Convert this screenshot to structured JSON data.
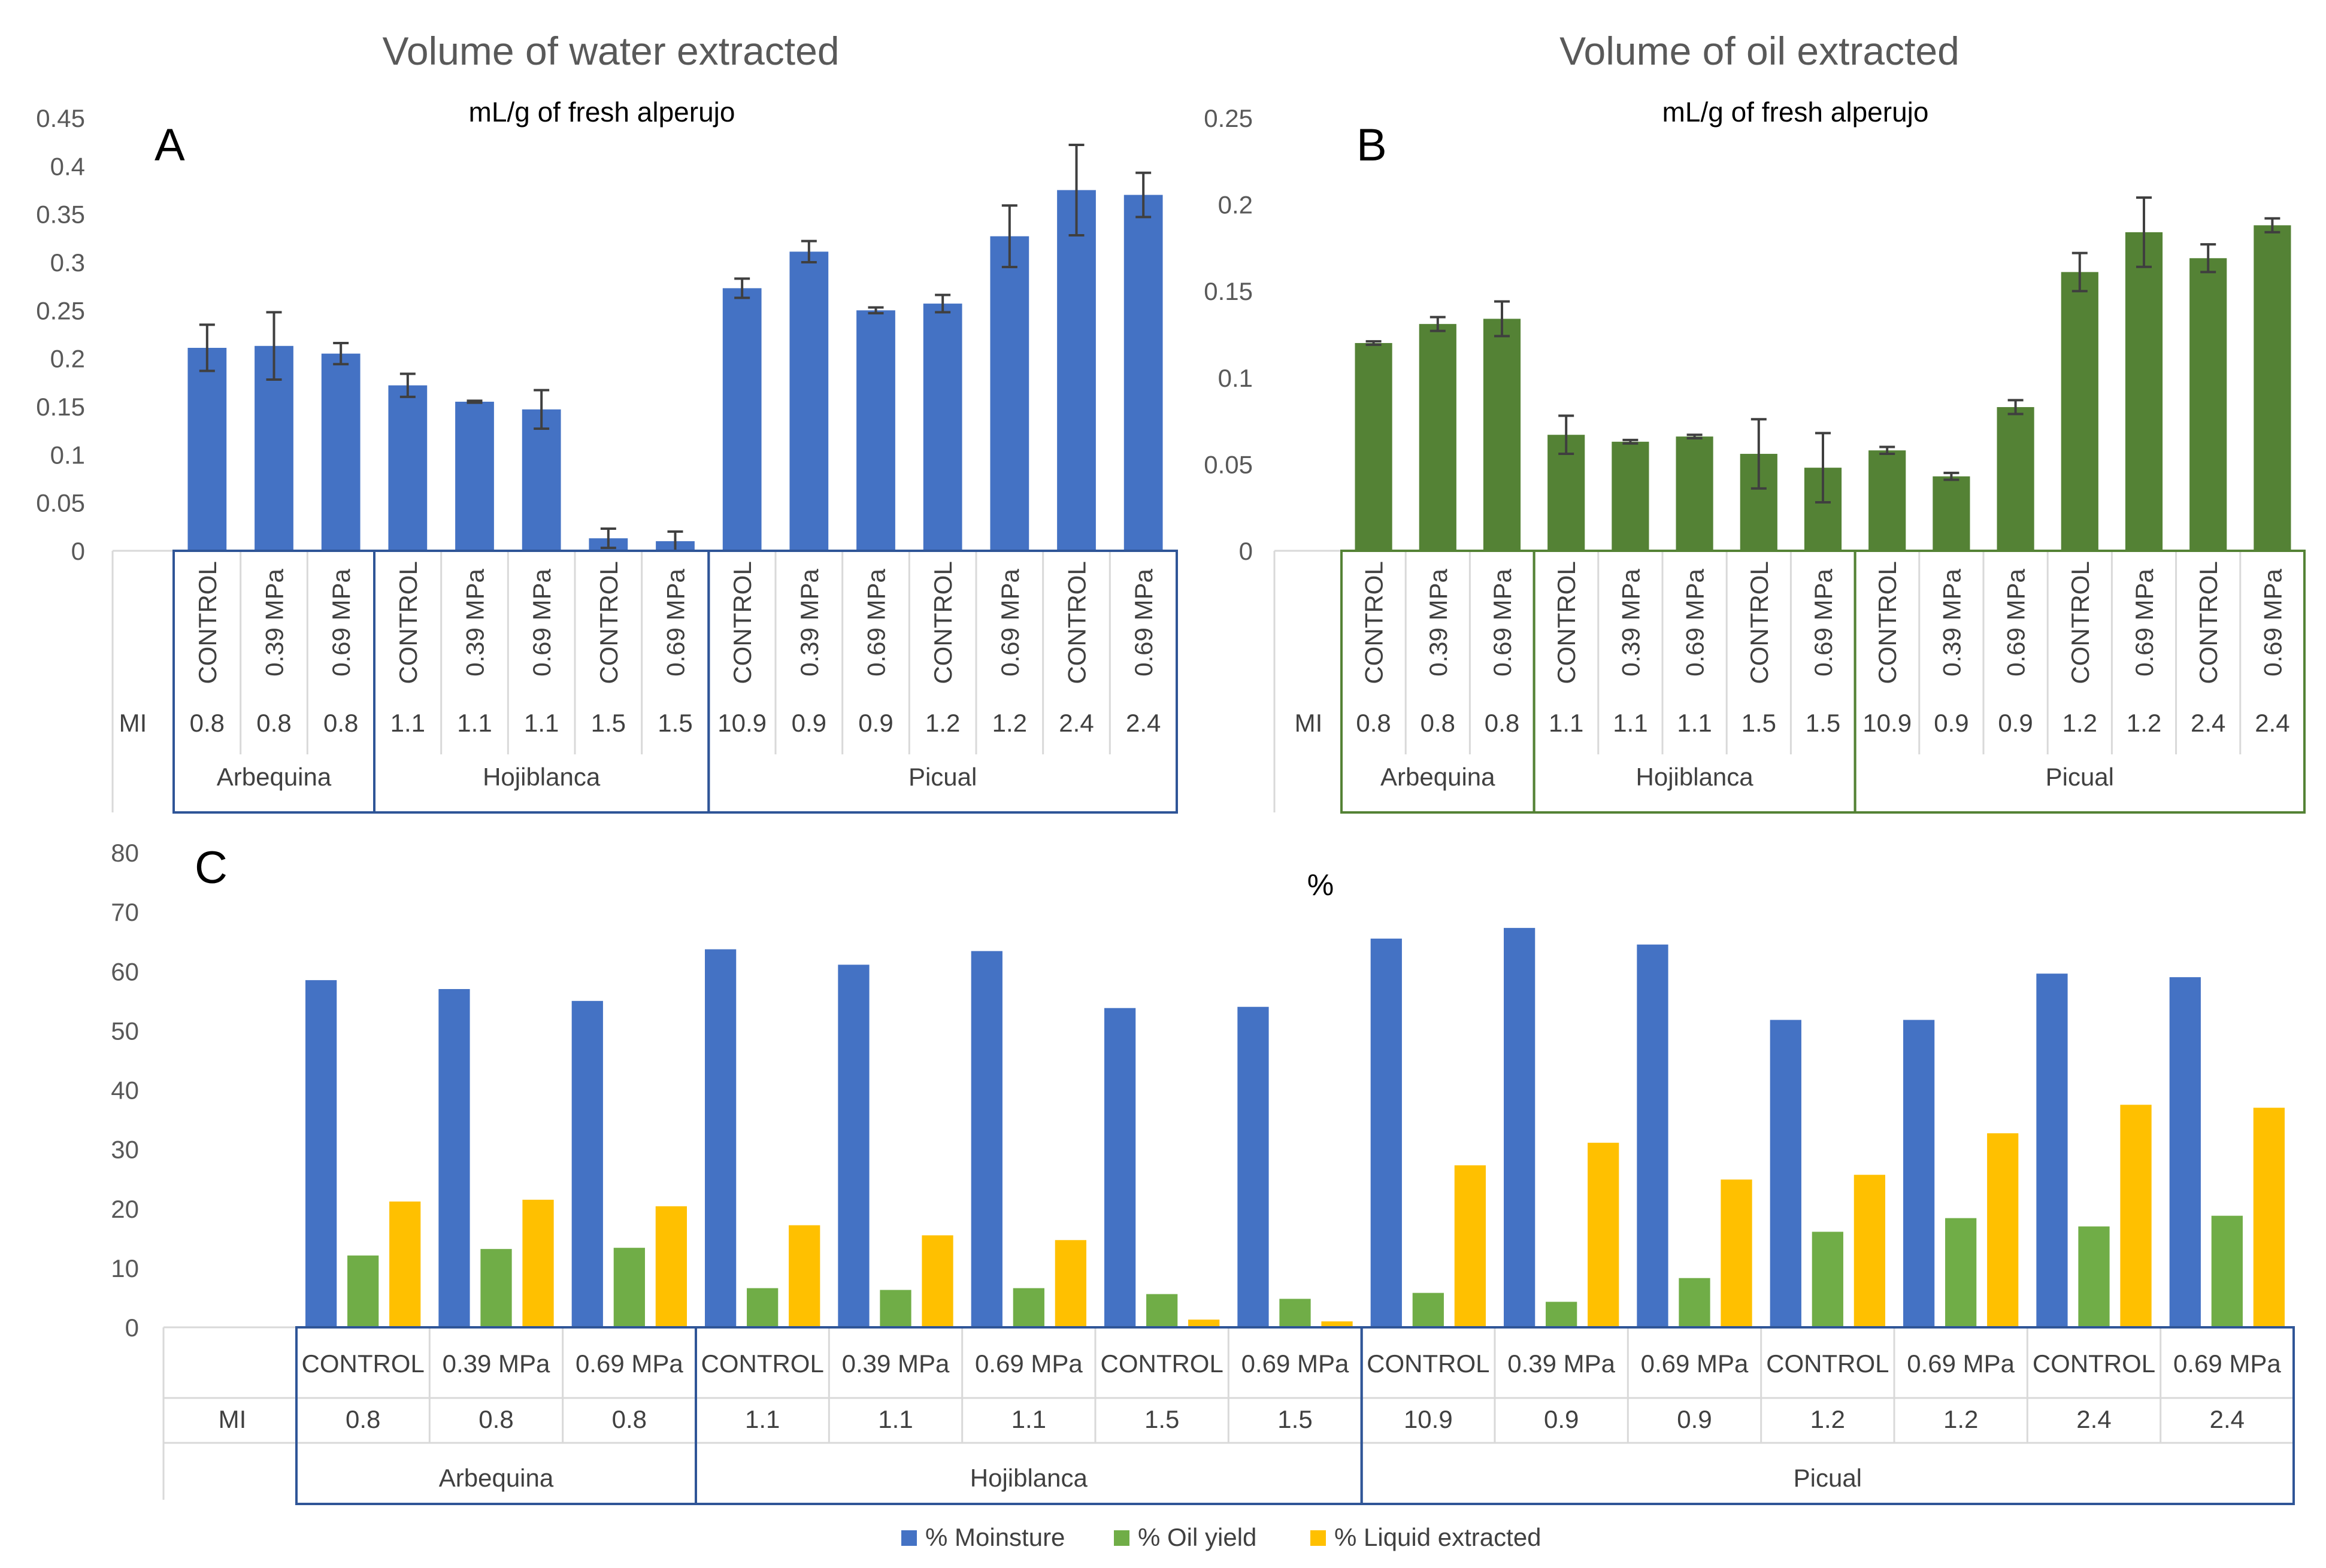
{
  "colors": {
    "water": "#4472C4",
    "oil": "#548235",
    "moisture": "#4472C4",
    "oil_yield": "#70AD47",
    "liquid": "#FFC000",
    "frame_blue": "#2F5597",
    "frame_green": "#548235",
    "axis_text": "#595959",
    "grid": "#D9D9D9"
  },
  "chart_data": [
    {
      "id": "A",
      "type": "bar",
      "panel_label": "A",
      "title": "Volume of water extracted",
      "subtitle": "mL/g of fresh alperujo",
      "ylim": [
        0,
        0.45
      ],
      "yticks": [
        "0",
        "0.05",
        "0.1",
        "0.15",
        "0.2",
        "0.25",
        "0.3",
        "0.35",
        "0.4",
        "0.45"
      ],
      "mi_label": "MI",
      "treatments": [
        "CONTROL",
        "0.39 MPa",
        "0.69 MPa",
        "CONTROL",
        "0.39 MPa",
        "0.69 MPa",
        "CONTROL",
        "0.69 MPa",
        "CONTROL",
        "0.39 MPa",
        "0.69 MPa",
        "CONTROL",
        "0.69 MPa",
        "CONTROL",
        "0.69 MPa"
      ],
      "mi": [
        "0.8",
        "0.8",
        "0.8",
        "1.1",
        "1.1",
        "1.1",
        "1.5",
        "1.5",
        "10.9",
        "0.9",
        "0.9",
        "1.2",
        "1.2",
        "2.4",
        "2.4"
      ],
      "varieties": [
        {
          "name": "Arbequina",
          "count": 3
        },
        {
          "name": "Hojiblanca",
          "count": 5
        },
        {
          "name": "Picual",
          "count": 7
        }
      ],
      "values": [
        0.211,
        0.213,
        0.205,
        0.172,
        0.155,
        0.147,
        0.013,
        0.01,
        0.273,
        0.311,
        0.25,
        0.257,
        0.327,
        0.375,
        0.37
      ],
      "errors": [
        0.024,
        0.035,
        0.011,
        0.012,
        0.001,
        0.02,
        0.01,
        0.01,
        0.01,
        0.011,
        0.003,
        0.009,
        0.032,
        0.047,
        0.023
      ]
    },
    {
      "id": "B",
      "type": "bar",
      "panel_label": "B",
      "title": "Volume of oil extracted",
      "subtitle": "mL/g of fresh alperujo",
      "ylim": [
        0,
        0.25
      ],
      "yticks": [
        "0",
        "0.05",
        "0.1",
        "0.15",
        "0.2",
        "0.25"
      ],
      "mi_label": "MI",
      "treatments": [
        "CONTROL",
        "0.39 MPa",
        "0.69 MPa",
        "CONTROL",
        "0.39 MPa",
        "0.69 MPa",
        "CONTROL",
        "0.69 MPa",
        "CONTROL",
        "0.39 MPa",
        "0.69 MPa",
        "CONTROL",
        "0.69 MPa",
        "CONTROL",
        "0.69 MPa"
      ],
      "mi": [
        "0.8",
        "0.8",
        "0.8",
        "1.1",
        "1.1",
        "1.1",
        "1.5",
        "1.5",
        "10.9",
        "0.9",
        "0.9",
        "1.2",
        "1.2",
        "2.4",
        "2.4"
      ],
      "varieties": [
        {
          "name": "Arbequina",
          "count": 3
        },
        {
          "name": "Hojiblanca",
          "count": 5
        },
        {
          "name": "Picual",
          "count": 7
        }
      ],
      "values": [
        0.12,
        0.131,
        0.134,
        0.067,
        0.063,
        0.066,
        0.056,
        0.048,
        0.058,
        0.043,
        0.083,
        0.161,
        0.184,
        0.169,
        0.188
      ],
      "errors": [
        0.001,
        0.004,
        0.01,
        0.011,
        0.001,
        0.001,
        0.02,
        0.02,
        0.002,
        0.002,
        0.004,
        0.011,
        0.02,
        0.008,
        0.004
      ]
    },
    {
      "id": "C",
      "type": "bar",
      "panel_label": "C",
      "title": "%",
      "ylim": [
        0,
        80
      ],
      "yticks": [
        "0",
        "10",
        "20",
        "30",
        "40",
        "50",
        "60",
        "70",
        "80"
      ],
      "mi_label": "MI",
      "treatments": [
        "CONTROL",
        "0.39 MPa",
        "0.69 MPa",
        "CONTROL",
        "0.39 MPa",
        "0.69 MPa",
        "CONTROL",
        "0.69 MPa",
        "CONTROL",
        "0.39 MPa",
        "0.69 MPa",
        "CONTROL",
        "0.69 MPa",
        "CONTROL",
        "0.69 MPa"
      ],
      "mi": [
        "0.8",
        "0.8",
        "0.8",
        "1.1",
        "1.1",
        "1.1",
        "1.5",
        "1.5",
        "10.9",
        "0.9",
        "0.9",
        "1.2",
        "1.2",
        "2.4",
        "2.4"
      ],
      "varieties": [
        {
          "name": "Arbequina",
          "count": 3
        },
        {
          "name": "Hojiblanca",
          "count": 5
        },
        {
          "name": "Picual",
          "count": 7
        }
      ],
      "series": [
        {
          "name": "% Moinsture",
          "values": [
            58.5,
            57.0,
            55.0,
            63.7,
            61.1,
            63.4,
            53.8,
            54.0,
            65.5,
            67.3,
            64.5,
            51.8,
            51.8,
            59.6,
            59.0
          ]
        },
        {
          "name": "% Oil yield",
          "values": [
            12.1,
            13.2,
            13.4,
            6.6,
            6.3,
            6.6,
            5.6,
            4.8,
            5.8,
            4.3,
            8.3,
            16.1,
            18.4,
            17.0,
            18.8
          ]
        },
        {
          "name": "% Liquid extracted",
          "values": [
            21.2,
            21.5,
            20.4,
            17.2,
            15.5,
            14.7,
            1.3,
            1.0,
            27.3,
            31.1,
            24.9,
            25.7,
            32.7,
            37.5,
            37.0
          ]
        }
      ]
    }
  ]
}
